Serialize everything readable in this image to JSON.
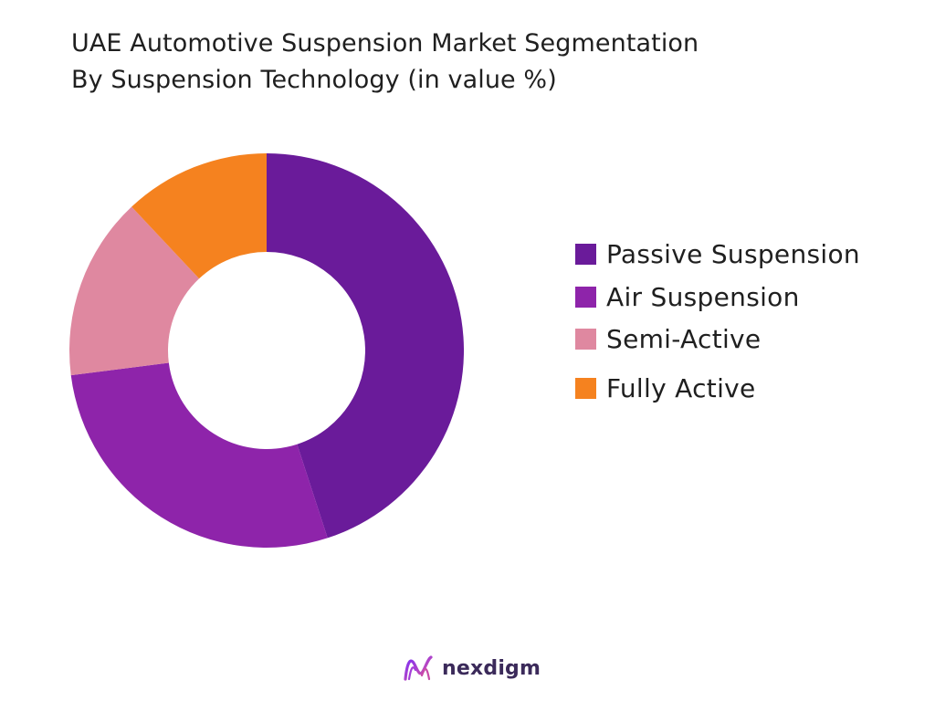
{
  "chart_data": {
    "type": "pie",
    "style": "donut",
    "title_lines": [
      "UAE Automotive Suspension Market Segmentation",
      "By Suspension Technology (in value %)"
    ],
    "categories": [
      "Passive Suspension",
      "Air Suspension",
      "Semi-Active",
      "Fully Active"
    ],
    "values": [
      45,
      28,
      15,
      12
    ],
    "colors": [
      "#6a1b9a",
      "#8e24aa",
      "#df88a0",
      "#f5821f"
    ],
    "legend_position": "right"
  },
  "brand": {
    "name": "nexdigm",
    "logo_icon": "nexdigm-logo-icon"
  }
}
